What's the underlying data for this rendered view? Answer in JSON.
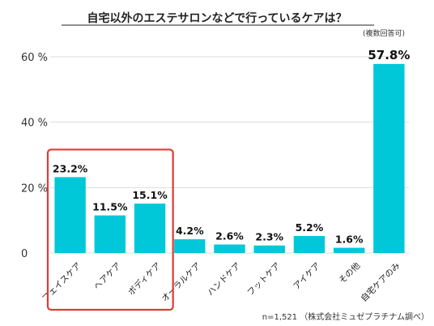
{
  "chart_data": {
    "type": "bar",
    "title": "自宅以外のエステサロンなどで行っているケアは？",
    "subtitle": "(複数回答可)",
    "categories": [
      "フェイスケア",
      "ヘアケア",
      "ボディケア",
      "オーラルケア",
      "ハンドケア",
      "フットケア",
      "アイケア",
      "その他",
      "自宅ケアのみ"
    ],
    "values": [
      23.2,
      11.5,
      15.1,
      4.2,
      2.6,
      2.3,
      5.2,
      1.6,
      57.8
    ],
    "value_labels": [
      "23.2%",
      "11.5%",
      "15.1%",
      "4.2%",
      "2.6%",
      "2.3%",
      "5.2%",
      "1.6%",
      "57.8%"
    ],
    "yticks": [
      0,
      20,
      40,
      60
    ],
    "ytick_labels": [
      "0",
      "20 %",
      "40 %",
      "60 %"
    ],
    "ylim": [
      0,
      60
    ],
    "grid": true,
    "bar_color": "#00c8d8",
    "grid_color": "#dddddd",
    "highlight": {
      "categories": [
        "フェイスケア",
        "ヘアケア",
        "ボディケア"
      ],
      "color": "#e53935"
    },
    "footnote": "n=1,521 （株式会社ミュゼプラチナム調べ）"
  }
}
